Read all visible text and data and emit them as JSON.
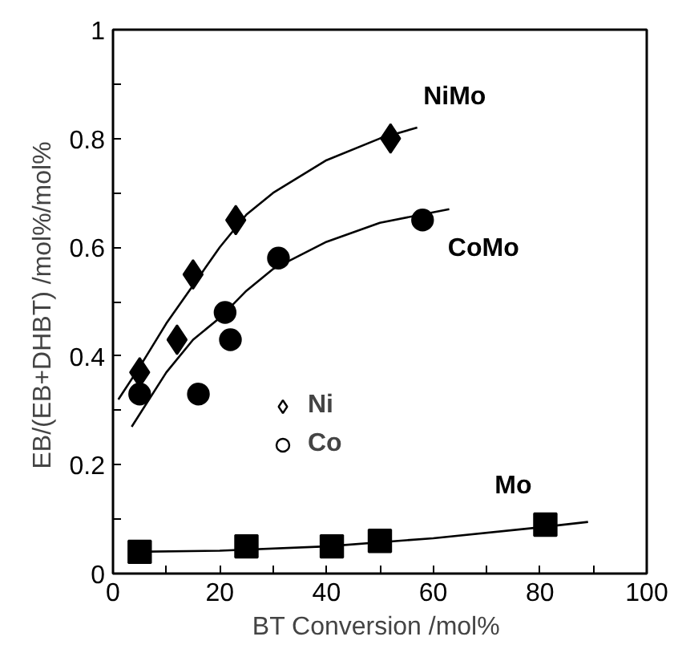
{
  "chart_data": {
    "type": "scatter",
    "xlabel": "BT Conversion  /mol%",
    "ylabel": "EB/(EB+DHBT)  /mol%/mol%",
    "xlim": [
      0,
      100
    ],
    "ylim": [
      0,
      1
    ],
    "xticks": [
      0,
      {
        "value": 10,
        "label": null
      },
      20,
      {
        "value": 30,
        "label": null
      },
      40,
      {
        "value": 50,
        "label": null
      },
      60,
      {
        "value": 70,
        "label": null
      },
      80,
      {
        "value": 90,
        "label": null
      },
      100
    ],
    "yticks": [
      0,
      {
        "value": 0.1,
        "label": null
      },
      0.2,
      {
        "value": 0.3,
        "label": null
      },
      0.4,
      {
        "value": 0.5,
        "label": null
      },
      0.6,
      {
        "value": 0.7,
        "label": null
      },
      0.8,
      {
        "value": 0.9,
        "label": null
      },
      1
    ],
    "grid": false,
    "legend": "left",
    "series": [
      {
        "marker": "diamond",
        "name": "NiMo",
        "color": "#000000",
        "x": [
          5,
          12,
          15,
          23,
          52
        ],
        "values": [
          0.37,
          0.43,
          0.55,
          0.65,
          0.8
        ]
      },
      {
        "marker": "circle",
        "name": "CoMo",
        "color": "#000000",
        "x": [
          5,
          16,
          21,
          22,
          31,
          58
        ],
        "values": [
          0.33,
          0.33,
          0.48,
          0.43,
          0.58,
          0.65
        ]
      },
      {
        "marker": "square",
        "name": "Mo",
        "color": "#000000",
        "x": [
          5,
          25,
          41,
          50,
          81
        ],
        "values": [
          0.04,
          0.05,
          0.05,
          0.06,
          0.09
        ]
      },
      {
        "type": "line",
        "color": "#000000",
        "x": [
          1,
          5,
          10,
          15,
          20,
          25,
          30,
          40,
          50,
          57
        ],
        "values": [
          0.32,
          0.38,
          0.46,
          0.53,
          0.6,
          0.66,
          0.7,
          0.76,
          0.8,
          0.82
        ]
      },
      {
        "type": "line",
        "color": "#000000",
        "x": [
          3.5,
          10,
          15,
          20,
          25,
          30,
          40,
          50,
          63
        ],
        "values": [
          0.27,
          0.37,
          0.43,
          0.47,
          0.52,
          0.56,
          0.61,
          0.645,
          0.67
        ]
      },
      {
        "type": "line",
        "color": "#000000",
        "x": [
          4,
          20,
          40,
          60,
          80,
          89
        ],
        "values": [
          0.04,
          0.042,
          0.05,
          0.065,
          0.085,
          0.095
        ]
      },
      {
        "marker": "diamond",
        "name": "Ni",
        "color": "#000000"
      },
      {
        "marker": "circle",
        "name": "Co",
        "color": "#000000"
      }
    ]
  }
}
